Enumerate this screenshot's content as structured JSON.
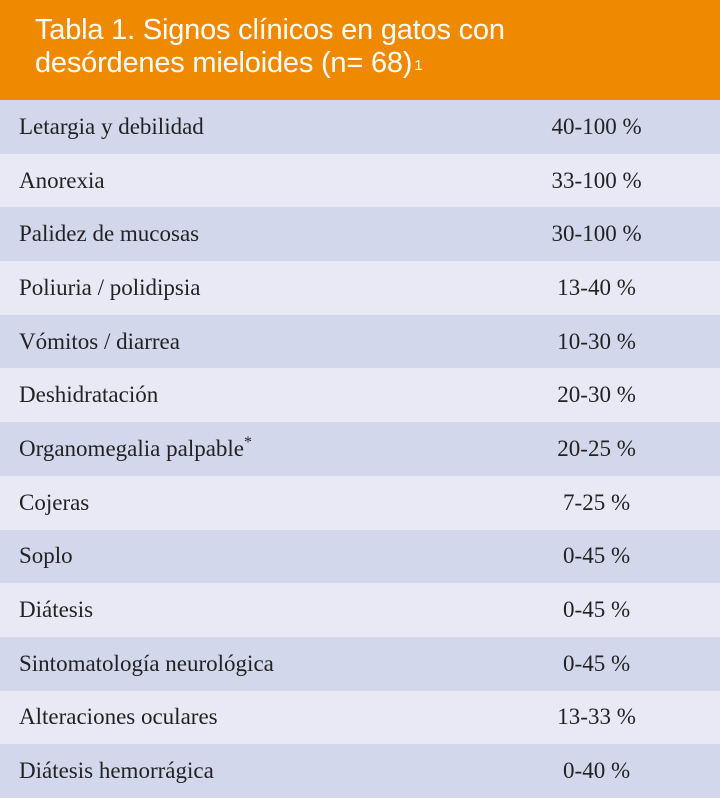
{
  "table": {
    "title_line1": "Tabla 1. Signos clínicos en gatos con",
    "title_line2": "desórdenes mieloides (n= 68)",
    "title_superscript": "1",
    "header_color": "#ef8a00",
    "row_colors": {
      "odd": "#d3d7ec",
      "even": "#e8e9f5"
    },
    "rows": [
      {
        "sign": "Letargia y debilidad",
        "value": "40-100 %"
      },
      {
        "sign": "Anorexia",
        "value": "33-100 %"
      },
      {
        "sign": "Palidez de mucosas",
        "value": "30-100 %"
      },
      {
        "sign": "Poliuria / polidipsia",
        "value": "13-40 %"
      },
      {
        "sign": "Vómitos / diarrea",
        "value": "10-30 %"
      },
      {
        "sign": "Deshidratación",
        "value": "20-30 %"
      },
      {
        "sign": "Organomegalia palpable",
        "sign_superscript": "*",
        "value": "20-25 %"
      },
      {
        "sign": "Cojeras",
        "value": "7-25 %"
      },
      {
        "sign": "Soplo",
        "value": "0-45 %"
      },
      {
        "sign": "Diátesis",
        "value": "0-45 %"
      },
      {
        "sign": "Sintomatología neurológica",
        "value": "0-45 %"
      },
      {
        "sign": "Alteraciones oculares",
        "value": "13-33 %"
      },
      {
        "sign": "Diátesis hemorrágica",
        "value": "0-40 %"
      }
    ]
  }
}
